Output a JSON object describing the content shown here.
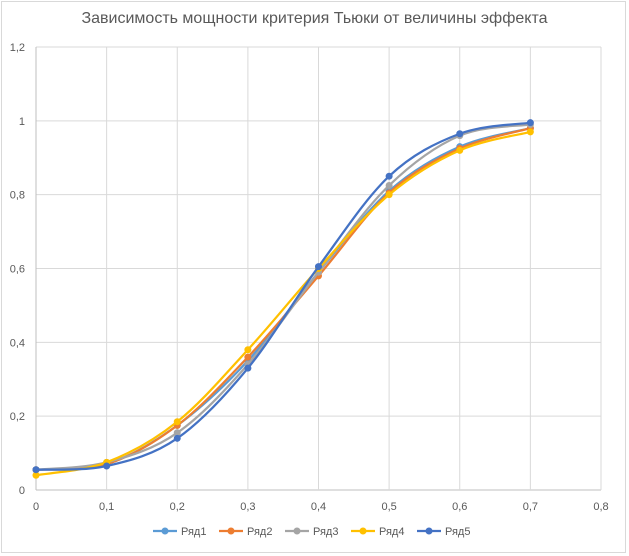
{
  "chart_data": {
    "type": "line",
    "title": "Зависимость мощности критерия Тьюки от величины эффекта",
    "xlabel": "",
    "ylabel": "",
    "xlim": [
      0,
      0.8
    ],
    "ylim": [
      0,
      1.2
    ],
    "x_ticks": [
      "0",
      "0,1",
      "0,2",
      "0,3",
      "0,4",
      "0,5",
      "0,6",
      "0,7",
      "0,8"
    ],
    "y_ticks": [
      "0",
      "0,2",
      "0,4",
      "0,6",
      "0,8",
      "1",
      "1,2"
    ],
    "grid": true,
    "legend_position": "bottom",
    "x": [
      0,
      0.1,
      0.2,
      0.3,
      0.4,
      0.5,
      0.6,
      0.7
    ],
    "series": [
      {
        "name": "Ряд1",
        "color": "#5b9bd5",
        "values": [
          0.055,
          0.07,
          0.175,
          0.35,
          0.59,
          0.81,
          0.93,
          0.98
        ]
      },
      {
        "name": "Ряд2",
        "color": "#ed7d31",
        "values": [
          0.055,
          0.07,
          0.175,
          0.36,
          0.58,
          0.805,
          0.925,
          0.98
        ]
      },
      {
        "name": "Ряд3",
        "color": "#a5a5a5",
        "values": [
          0.055,
          0.075,
          0.155,
          0.34,
          0.59,
          0.825,
          0.96,
          0.99
        ]
      },
      {
        "name": "Ряд4",
        "color": "#ffc000",
        "values": [
          0.04,
          0.075,
          0.185,
          0.38,
          0.6,
          0.8,
          0.92,
          0.97
        ]
      },
      {
        "name": "Ряд5",
        "color": "#4472c4",
        "values": [
          0.055,
          0.065,
          0.14,
          0.33,
          0.605,
          0.85,
          0.965,
          0.995
        ]
      }
    ]
  }
}
